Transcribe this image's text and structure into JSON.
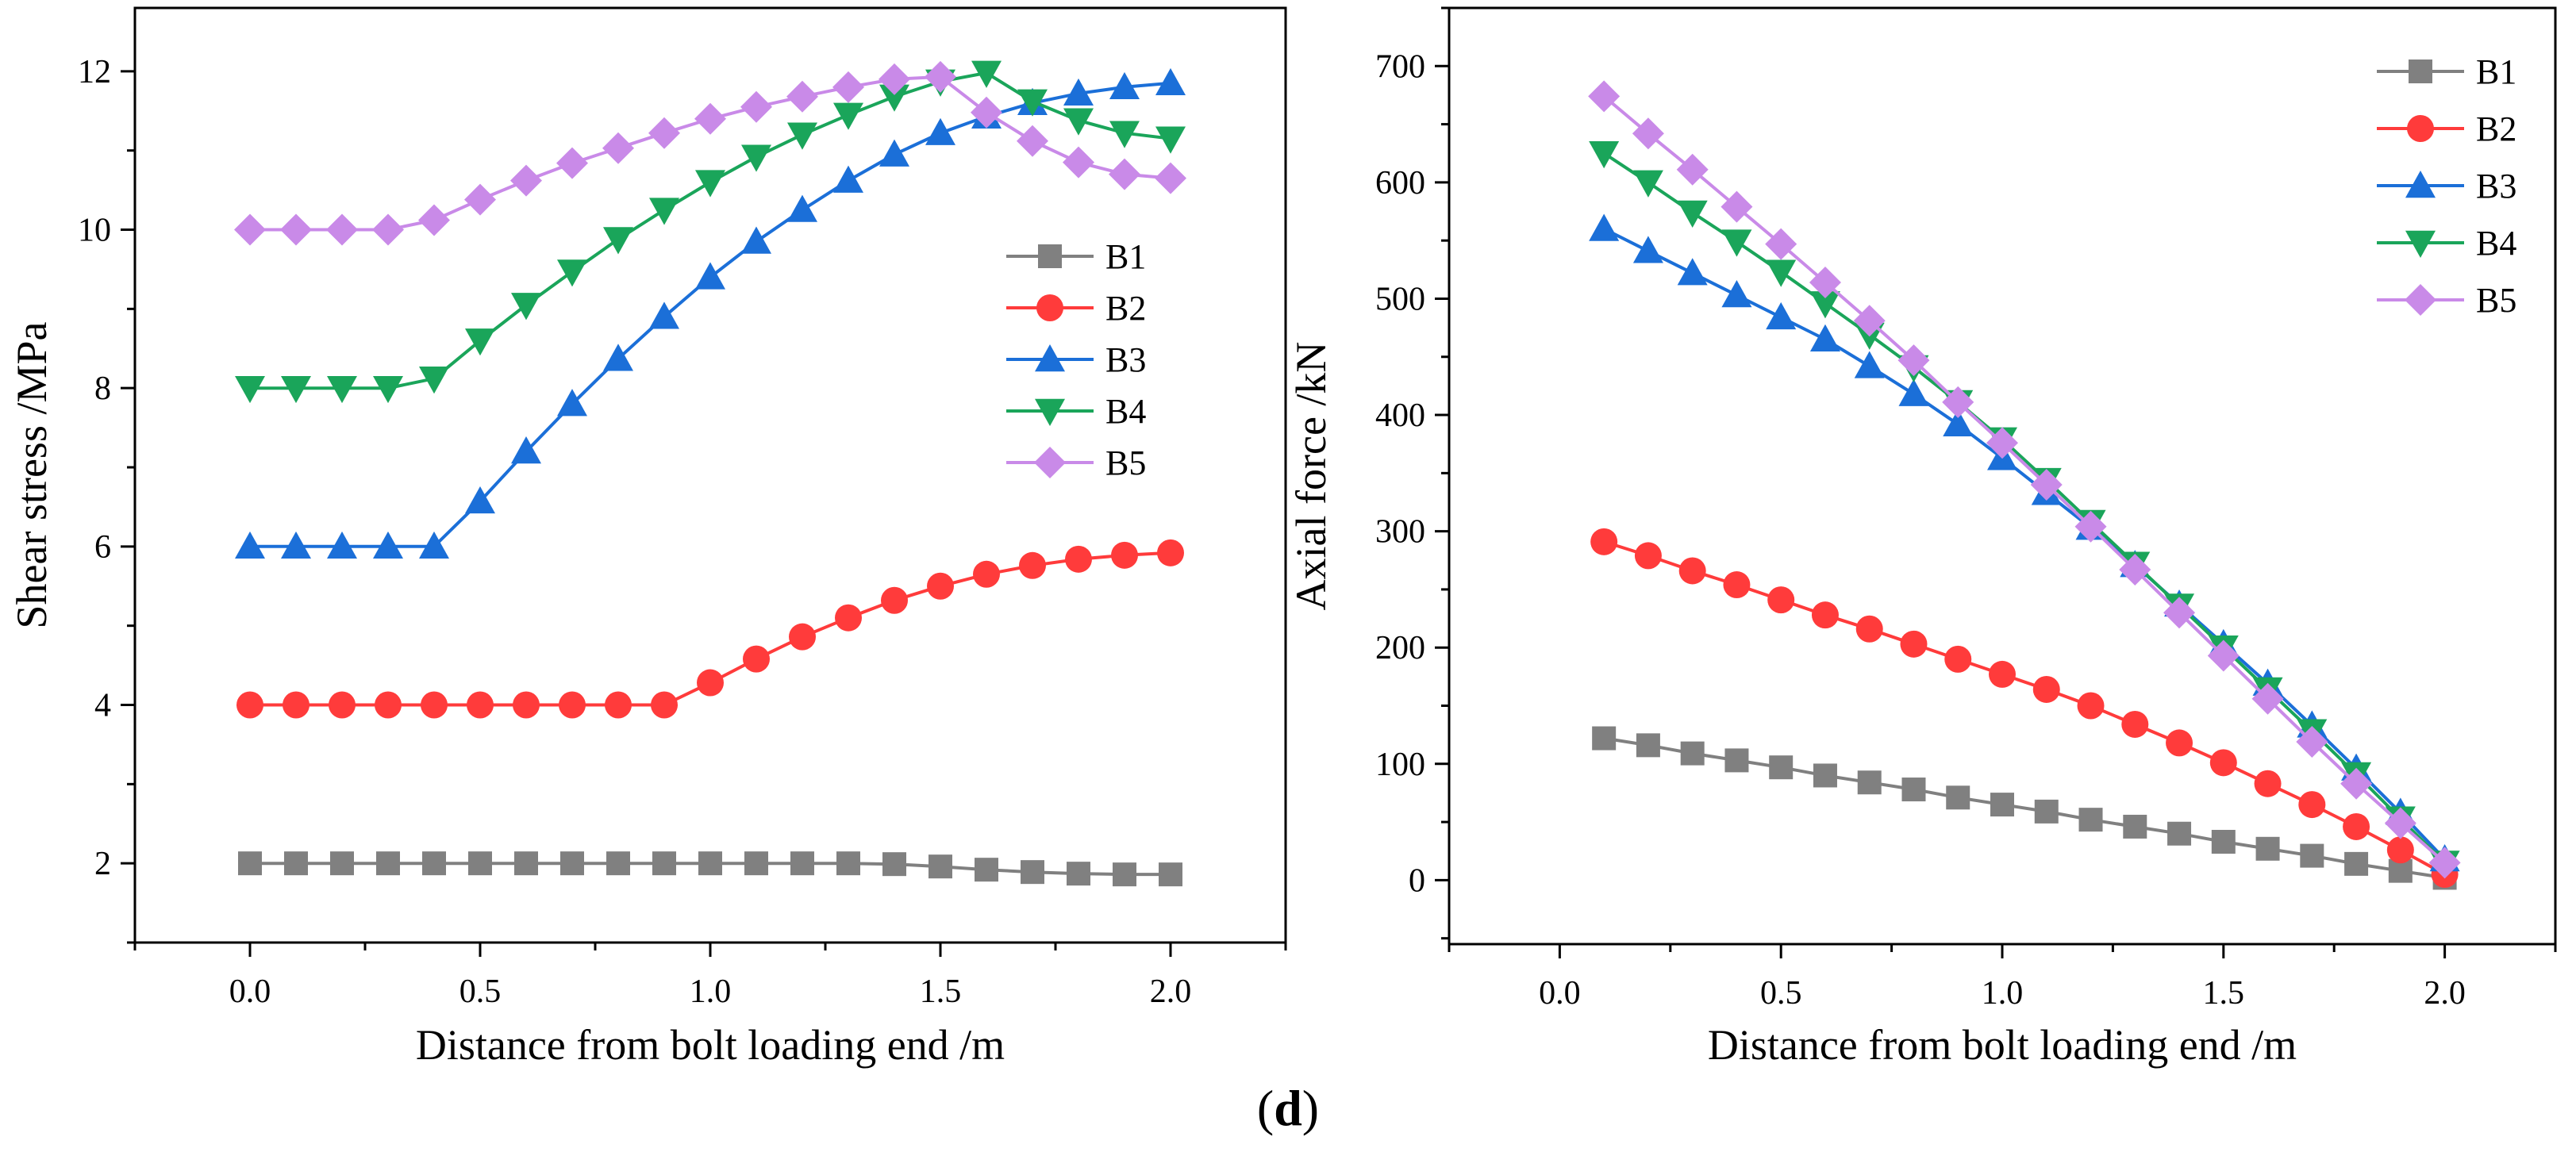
{
  "panel_label": {
    "open": "(",
    "letter": "d",
    "close": ")"
  },
  "colors": {
    "B1": "#808080",
    "B2": "#FF3B3B",
    "B3": "#1B6FD8",
    "B4": "#1AA55A",
    "B5": "#C98AE8"
  },
  "chart_data": [
    {
      "type": "line",
      "title": "",
      "xlabel": "Distance from bolt loading end /m",
      "ylabel": "Shear stress /MPa",
      "xlim": [
        -0.25,
        2.25
      ],
      "ylim": [
        1.0,
        12.8
      ],
      "xticks": [
        0.0,
        0.5,
        1.0,
        1.5,
        2.0
      ],
      "xtick_labels": [
        "0.0",
        "0.5",
        "1.0",
        "1.5",
        "2.0"
      ],
      "yticks": [
        2,
        4,
        6,
        8,
        10,
        12
      ],
      "ytick_labels": [
        "2",
        "4",
        "6",
        "8",
        "10",
        "12"
      ],
      "grid": false,
      "legend_position": "middle-right",
      "x": [
        0.0,
        0.1,
        0.2,
        0.3,
        0.4,
        0.5,
        0.6,
        0.7,
        0.8,
        0.9,
        1.0,
        1.1,
        1.2,
        1.3,
        1.4,
        1.5,
        1.6,
        1.7,
        1.8,
        1.9,
        2.0
      ],
      "series": [
        {
          "name": "B1",
          "marker": "square",
          "values": [
            2.0,
            2.0,
            2.0,
            2.0,
            2.0,
            2.0,
            2.0,
            2.0,
            2.0,
            2.0,
            2.0,
            2.0,
            2.0,
            2.0,
            1.99,
            1.96,
            1.92,
            1.89,
            1.87,
            1.86,
            1.86
          ]
        },
        {
          "name": "B2",
          "marker": "circle",
          "values": [
            4.0,
            4.0,
            4.0,
            4.0,
            4.0,
            4.0,
            4.0,
            4.0,
            4.0,
            4.0,
            4.28,
            4.58,
            4.86,
            5.1,
            5.32,
            5.5,
            5.65,
            5.76,
            5.84,
            5.89,
            5.92
          ]
        },
        {
          "name": "B3",
          "marker": "triangle-up",
          "values": [
            6.0,
            6.0,
            6.0,
            6.0,
            6.0,
            6.57,
            7.2,
            7.8,
            8.37,
            8.9,
            9.4,
            9.85,
            10.25,
            10.62,
            10.95,
            11.22,
            11.43,
            11.6,
            11.72,
            11.8,
            11.85
          ]
        },
        {
          "name": "B4",
          "marker": "triangle-down",
          "values": [
            8.0,
            8.0,
            8.0,
            8.0,
            8.12,
            8.6,
            9.05,
            9.47,
            9.88,
            10.25,
            10.6,
            10.92,
            11.2,
            11.45,
            11.68,
            11.87,
            11.98,
            11.62,
            11.38,
            11.22,
            11.15
          ]
        },
        {
          "name": "B5",
          "marker": "diamond",
          "values": [
            10.0,
            10.0,
            10.0,
            10.0,
            10.12,
            10.38,
            10.62,
            10.84,
            11.03,
            11.22,
            11.4,
            11.55,
            11.68,
            11.8,
            11.9,
            11.93,
            11.48,
            11.12,
            10.85,
            10.7,
            10.65
          ]
        }
      ]
    },
    {
      "type": "line",
      "title": "",
      "xlabel": "Distance from bolt loading end /m",
      "ylabel": "Axial force /kN",
      "xlim": [
        -0.25,
        2.25
      ],
      "ylim": [
        -55,
        750
      ],
      "xticks": [
        0.0,
        0.5,
        1.0,
        1.5,
        2.0
      ],
      "xtick_labels": [
        "0.0",
        "0.5",
        "1.0",
        "1.5",
        "2.0"
      ],
      "yticks": [
        0,
        100,
        200,
        300,
        400,
        500,
        600,
        700
      ],
      "ytick_labels": [
        "0",
        "100",
        "200",
        "300",
        "400",
        "500",
        "600",
        "700"
      ],
      "grid": false,
      "legend_position": "top-right",
      "x": [
        0.1,
        0.2,
        0.3,
        0.4,
        0.5,
        0.6,
        0.7,
        0.8,
        0.9,
        1.0,
        1.1,
        1.2,
        1.3,
        1.4,
        1.5,
        1.6,
        1.7,
        1.8,
        1.9,
        2.0
      ],
      "series": [
        {
          "name": "B1",
          "marker": "square",
          "values": [
            122,
            116,
            109,
            103,
            97,
            90,
            84,
            78,
            71,
            65,
            59,
            52,
            46,
            40,
            33,
            27,
            21,
            14,
            8,
            2
          ]
        },
        {
          "name": "B2",
          "marker": "circle",
          "values": [
            291,
            279,
            266,
            254,
            241,
            228,
            216,
            203,
            190,
            177,
            164,
            150,
            134,
            118,
            101,
            83,
            65,
            46,
            26,
            5
          ]
        },
        {
          "name": "B3",
          "marker": "triangle-up",
          "values": [
            560,
            541,
            522,
            503,
            484,
            465,
            442,
            418,
            392,
            363,
            333,
            303,
            271,
            237,
            203,
            169,
            133,
            96,
            58,
            18
          ]
        },
        {
          "name": "B4",
          "marker": "triangle-down",
          "values": [
            625,
            600,
            574,
            549,
            523,
            496,
            469,
            441,
            411,
            379,
            344,
            308,
            272,
            236,
            200,
            164,
            128,
            91,
            53,
            15
          ]
        },
        {
          "name": "B5",
          "marker": "diamond",
          "values": [
            674,
            642,
            611,
            579,
            547,
            514,
            481,
            447,
            411,
            376,
            340,
            304,
            267,
            230,
            193,
            156,
            119,
            83,
            49,
            15
          ]
        }
      ]
    }
  ]
}
